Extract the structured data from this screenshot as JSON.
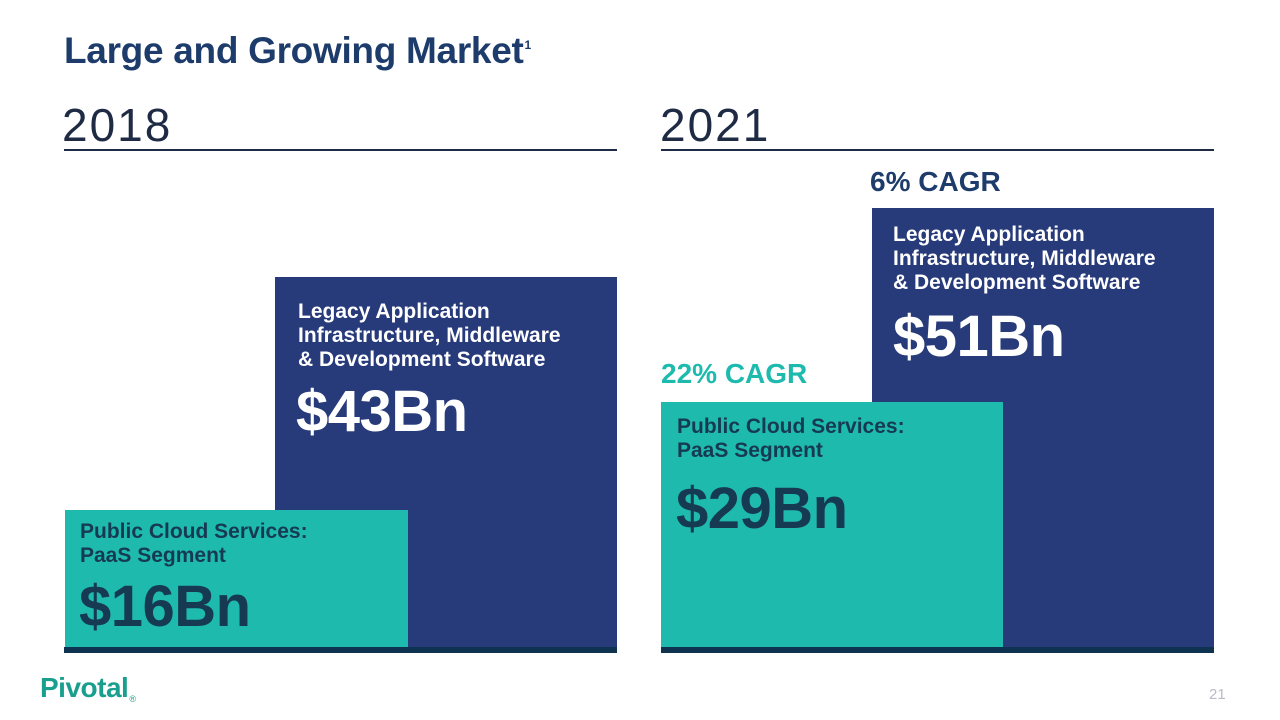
{
  "header": {
    "title": "Large and Growing Market",
    "footnote_mark": "1"
  },
  "chart_data": {
    "type": "bar",
    "categories": [
      "2018",
      "2021"
    ],
    "series": [
      {
        "name": "Legacy Application Infrastructure, Middleware & Development Software",
        "values": [
          43,
          51
        ],
        "value_labels": [
          "$43Bn",
          "$51Bn"
        ],
        "cagr": "6% CAGR",
        "color": "#273a7a"
      },
      {
        "name": "Public Cloud Services: PaaS Segment",
        "values": [
          16,
          29
        ],
        "value_labels": [
          "$16Bn",
          "$29Bn"
        ],
        "cagr": "22% CAGR",
        "color": "#1fbaae"
      }
    ],
    "legacy_label_lines": [
      "Legacy Application",
      "Infrastructure, Middleware",
      "& Development Software"
    ],
    "paas_label_lines": [
      "Public Cloud Services:",
      "PaaS Segment"
    ],
    "units": "$Bn"
  },
  "footer": {
    "logo": "Pivotal",
    "logo_mark": "®",
    "page_number": "21"
  }
}
